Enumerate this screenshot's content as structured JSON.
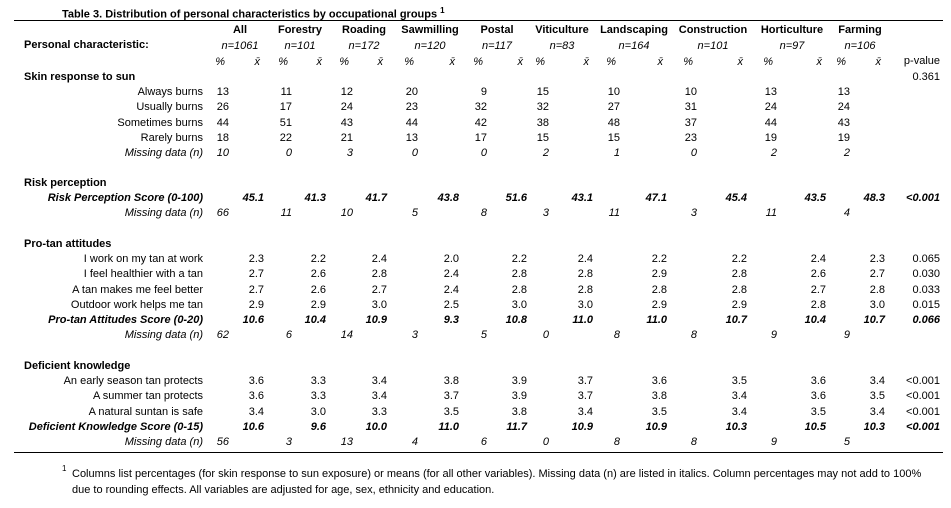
{
  "header": {
    "title": "Table 3.  Distribution of personal characteristics by occupational groups",
    "title_note": "1",
    "row_header": "Personal characteristic:",
    "p_header": "p-value",
    "unit_labels": [
      "%",
      "x̄"
    ],
    "groups": [
      {
        "name": "All",
        "n": "n=1061"
      },
      {
        "name": "Forestry",
        "n": "n=101"
      },
      {
        "name": "Roading",
        "n": "n=172"
      },
      {
        "name": "Sawmilling",
        "n": "n=120"
      },
      {
        "name": "Postal",
        "n": "n=117"
      },
      {
        "name": "Viticulture",
        "n": "n=83"
      },
      {
        "name": "Landscaping",
        "n": "n=164"
      },
      {
        "name": "Construction",
        "n": "n=101"
      },
      {
        "name": "Horticulture",
        "n": "n=97"
      },
      {
        "name": "Farming",
        "n": "n=106"
      }
    ]
  },
  "sections": [
    {
      "title": "Skin response to sun",
      "p": "0.361",
      "items": [
        {
          "label": "Always burns",
          "pct": [
            "13",
            "11",
            "12",
            "20",
            "9",
            "15",
            "10",
            "10",
            "13",
            "13"
          ]
        },
        {
          "label": "Usually burns",
          "pct": [
            "26",
            "17",
            "24",
            "23",
            "32",
            "32",
            "27",
            "31",
            "24",
            "24"
          ]
        },
        {
          "label": "Sometimes burns",
          "pct": [
            "44",
            "51",
            "43",
            "44",
            "42",
            "38",
            "48",
            "37",
            "44",
            "43"
          ]
        },
        {
          "label": "Rarely burns",
          "pct": [
            "18",
            "22",
            "21",
            "13",
            "17",
            "15",
            "15",
            "23",
            "19",
            "19"
          ]
        }
      ],
      "missing": {
        "label": "Missing data (n)",
        "values": [
          "10",
          "0",
          "3",
          "0",
          "0",
          "2",
          "1",
          "0",
          "2",
          "2"
        ]
      }
    },
    {
      "title": "Risk perception",
      "items": [],
      "score": {
        "label": "Risk Perception Score (0-100)",
        "mean": [
          "45.1",
          "41.3",
          "41.7",
          "43.8",
          "51.6",
          "43.1",
          "47.1",
          "45.4",
          "43.5",
          "48.3"
        ],
        "p": "<0.001"
      },
      "missing": {
        "label": "Missing data (n)",
        "values": [
          "66",
          "11",
          "10",
          "5",
          "8",
          "3",
          "11",
          "3",
          "11",
          "4"
        ]
      }
    },
    {
      "title": "Pro-tan attitudes",
      "items": [
        {
          "label": "I work on my tan at work",
          "mean": [
            "2.3",
            "2.2",
            "2.4",
            "2.0",
            "2.2",
            "2.4",
            "2.2",
            "2.2",
            "2.4",
            "2.3"
          ],
          "p": "0.065"
        },
        {
          "label": "I feel healthier with a tan",
          "mean": [
            "2.7",
            "2.6",
            "2.8",
            "2.4",
            "2.8",
            "2.8",
            "2.9",
            "2.8",
            "2.6",
            "2.7"
          ],
          "p": "0.030"
        },
        {
          "label": "A tan makes me feel better",
          "mean": [
            "2.7",
            "2.6",
            "2.7",
            "2.4",
            "2.8",
            "2.8",
            "2.8",
            "2.8",
            "2.7",
            "2.8"
          ],
          "p": "0.033"
        },
        {
          "label": "Outdoor work helps me tan",
          "mean": [
            "2.9",
            "2.9",
            "3.0",
            "2.5",
            "3.0",
            "3.0",
            "2.9",
            "2.9",
            "2.8",
            "3.0"
          ],
          "p": "0.015"
        }
      ],
      "score": {
        "label": "Pro-tan Attitudes Score (0-20)",
        "mean": [
          "10.6",
          "10.4",
          "10.9",
          "9.3",
          "10.8",
          "11.0",
          "11.0",
          "10.7",
          "10.4",
          "10.7"
        ],
        "p": "0.066"
      },
      "missing": {
        "label": "Missing data (n)",
        "values": [
          "62",
          "6",
          "14",
          "3",
          "5",
          "0",
          "8",
          "8",
          "9",
          "9"
        ]
      }
    },
    {
      "title": "Deficient knowledge",
      "items": [
        {
          "label": "An early season tan protects",
          "mean": [
            "3.6",
            "3.3",
            "3.4",
            "3.8",
            "3.9",
            "3.7",
            "3.6",
            "3.5",
            "3.6",
            "3.4"
          ],
          "p": "<0.001"
        },
        {
          "label": "A summer tan protects",
          "mean": [
            "3.6",
            "3.3",
            "3.4",
            "3.7",
            "3.9",
            "3.7",
            "3.8",
            "3.4",
            "3.6",
            "3.5"
          ],
          "p": "<0.001"
        },
        {
          "label": "A natural suntan is safe",
          "mean": [
            "3.4",
            "3.0",
            "3.3",
            "3.5",
            "3.8",
            "3.4",
            "3.5",
            "3.4",
            "3.5",
            "3.4"
          ],
          "p": "<0.001"
        }
      ],
      "score": {
        "label": "Deficient Knowledge Score (0-15)",
        "mean": [
          "10.6",
          "9.6",
          "10.0",
          "11.0",
          "11.7",
          "10.9",
          "10.9",
          "10.3",
          "10.5",
          "10.3"
        ],
        "p": "<0.001"
      },
      "missing": {
        "label": "Missing data (n)",
        "values": [
          "56",
          "3",
          "13",
          "4",
          "6",
          "0",
          "8",
          "8",
          "9",
          "5"
        ]
      }
    }
  ],
  "footnote": {
    "marker": "1",
    "text": "Columns list percentages (for skin response to sun exposure) or means (for all other variables).  Missing data (n) are listed in italics.  Column percentages may not add to 100% due to rounding effects. All variables are adjusted for age, sex, ethnicity and education."
  }
}
